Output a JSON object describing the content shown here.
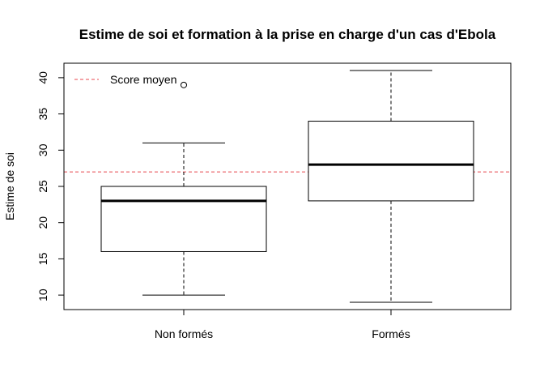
{
  "chart_data": {
    "type": "boxplot",
    "title": "Estime de soi et formation à la prise en charge d'un cas d'Ebola",
    "xlabel": "",
    "ylabel": "Estime de soi",
    "ylim": [
      8,
      42
    ],
    "yticks": [
      10,
      15,
      20,
      25,
      30,
      35,
      40
    ],
    "categories": [
      "Non formés",
      "Formés"
    ],
    "boxes": [
      {
        "category": "Non formés",
        "whisker_low": 10,
        "q1": 16,
        "median": 23,
        "q3": 25,
        "whisker_high": 31,
        "outliers": [
          39
        ]
      },
      {
        "category": "Formés",
        "whisker_low": 9,
        "q1": 23,
        "median": 28,
        "q3": 34,
        "whisker_high": 41,
        "outliers": []
      }
    ],
    "reference_line": {
      "label": "Score moyen",
      "value": 27,
      "color": "#e8474f",
      "style": "dashed"
    },
    "legend": {
      "position": "top-left",
      "entries": [
        "Score moyen"
      ]
    },
    "grid": false
  }
}
